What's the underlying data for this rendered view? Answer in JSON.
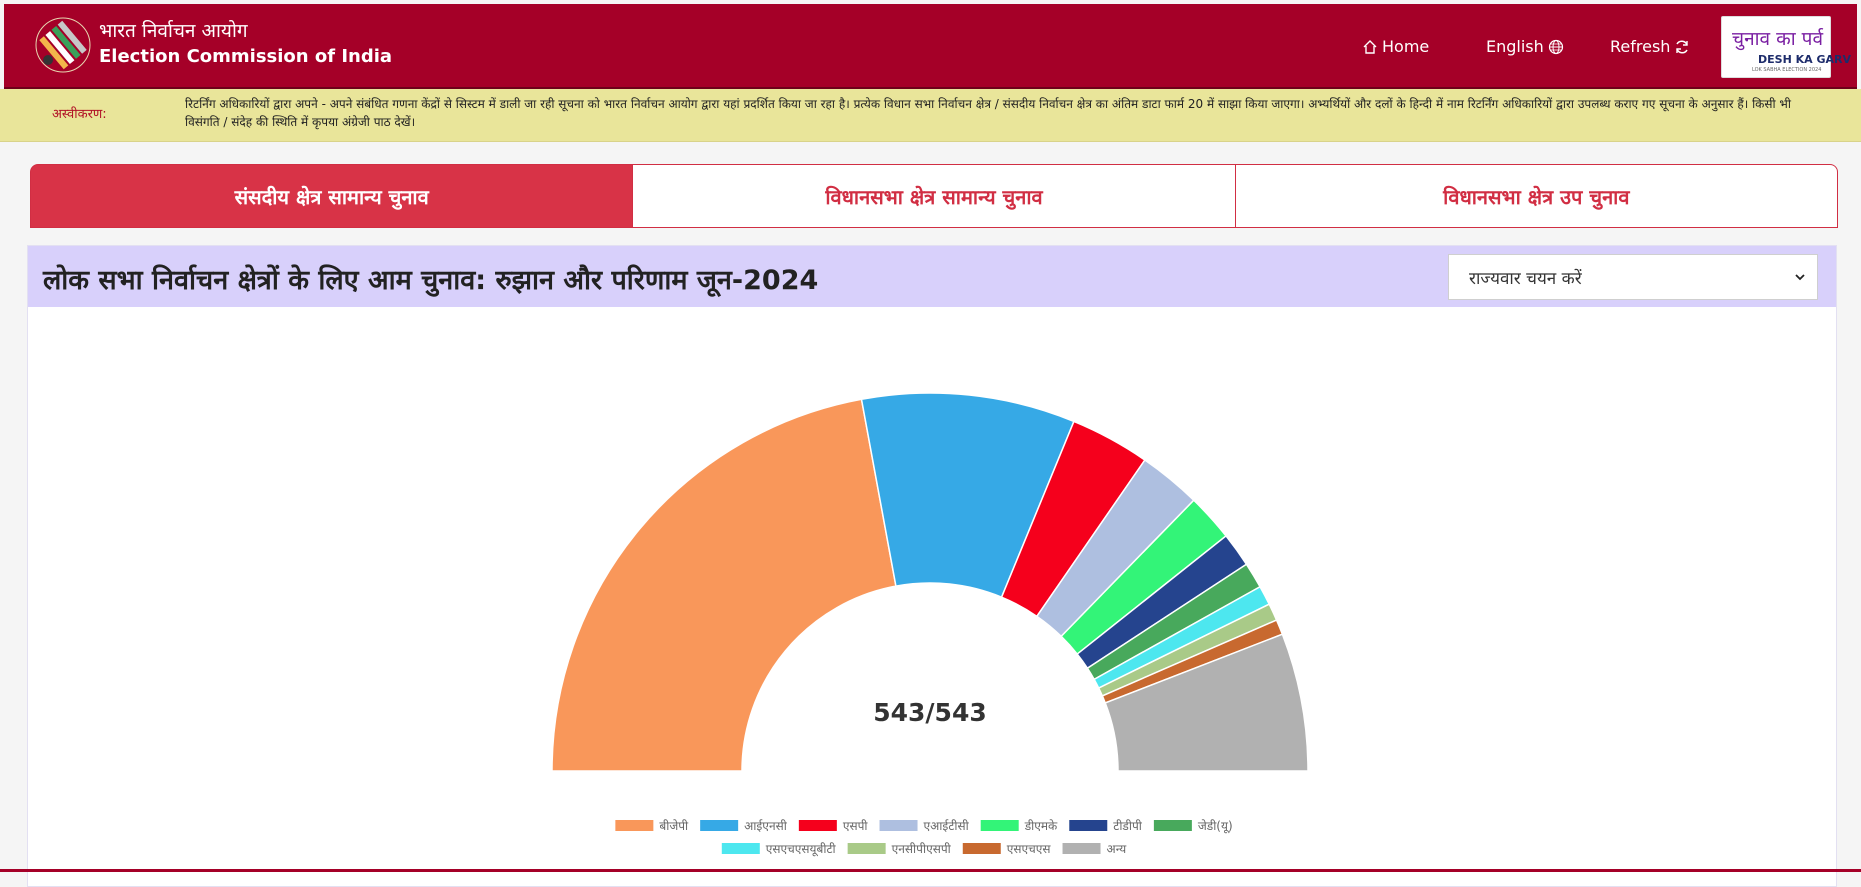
{
  "header": {
    "brand_hi": "भारत निर्वाचन आयोग",
    "brand_en": "Election Commission of India",
    "nav": {
      "home": "Home",
      "language": "English",
      "refresh": "Refresh"
    },
    "badge": {
      "line1": "चुनाव का पर्व",
      "line2": "DESH KA GARV",
      "line3": "LOK SABHA ELECTION 2024"
    },
    "icons": [
      "election-commission-logo",
      "home-icon",
      "globe-icon",
      "refresh-icon"
    ]
  },
  "disclaimer": {
    "label": "अस्वीकरण:",
    "text": "रिटर्निंग अधिकारियों द्वारा अपने - अपने संबंधित गणना केंद्रों से सिस्टम में डाली जा रही सूचना को भारत निर्वाचन आयोग द्वारा यहां प्रदर्शित किया जा रहा है। प्रत्येक विधान सभा निर्वाचन क्षेत्र / संसदीय निर्वाचन क्षेत्र का अंतिम डाटा फार्म 20 में साझा किया जाएगा। अभ्यर्थियों और दलों के हिन्दी में नाम रिटर्निंग अधिकारियों द्वारा उपलब्ध कराए गए सूचना के अनुसार हैं। किसी भी विसंगति / संदेह की स्थिति में कृपया अंग्रेजी पाठ देखें।"
  },
  "tabs": [
    {
      "label": "संसदीय क्षेत्र सामान्य चुनाव",
      "active": true
    },
    {
      "label": "विधानसभा क्षेत्र सामान्य चुनाव",
      "active": false
    },
    {
      "label": "विधानसभा क्षेत्र उप चुनाव",
      "active": false
    }
  ],
  "panel": {
    "title": "लोक सभा निर्वाचन क्षेत्रों के लिए आम चुनाव: रुझान और परिणाम जून-2024",
    "state_select": "राज्यवार चयन करें"
  },
  "colors": {
    "header_bg": "#a50028",
    "tab_active": "#d83347",
    "panel_head": "#d8d0fb",
    "disclaimer_bg": "#e9e59a"
  },
  "chart_data": {
    "type": "pie",
    "variant": "half-doughnut",
    "center_text": "543/543",
    "total": 543,
    "slices": [
      {
        "label": "बीजेपी",
        "value": 240,
        "color": "#f9975a"
      },
      {
        "label": "आईएनसी",
        "value": 99,
        "color": "#36a9e6"
      },
      {
        "label": "एसपी",
        "value": 37,
        "color": "#f5001c"
      },
      {
        "label": "एआईटीसी",
        "value": 29,
        "color": "#aebfe0"
      },
      {
        "label": "डीएमके",
        "value": 22,
        "color": "#33f478"
      },
      {
        "label": "टीडीपी",
        "value": 16,
        "color": "#25448e"
      },
      {
        "label": "जेडी(यू)",
        "value": 12,
        "color": "#48a95c"
      },
      {
        "label": "एसएचएसयूबीटी",
        "value": 9,
        "color": "#4de7ef"
      },
      {
        "label": "एनसीपीएसपी",
        "value": 8,
        "color": "#a9ca88"
      },
      {
        "label": "एसएचएस",
        "value": 7,
        "color": "#c8692f"
      },
      {
        "label": "अन्य",
        "value": 64,
        "color": "#b1b1b1"
      }
    ],
    "legend_position": "bottom"
  }
}
